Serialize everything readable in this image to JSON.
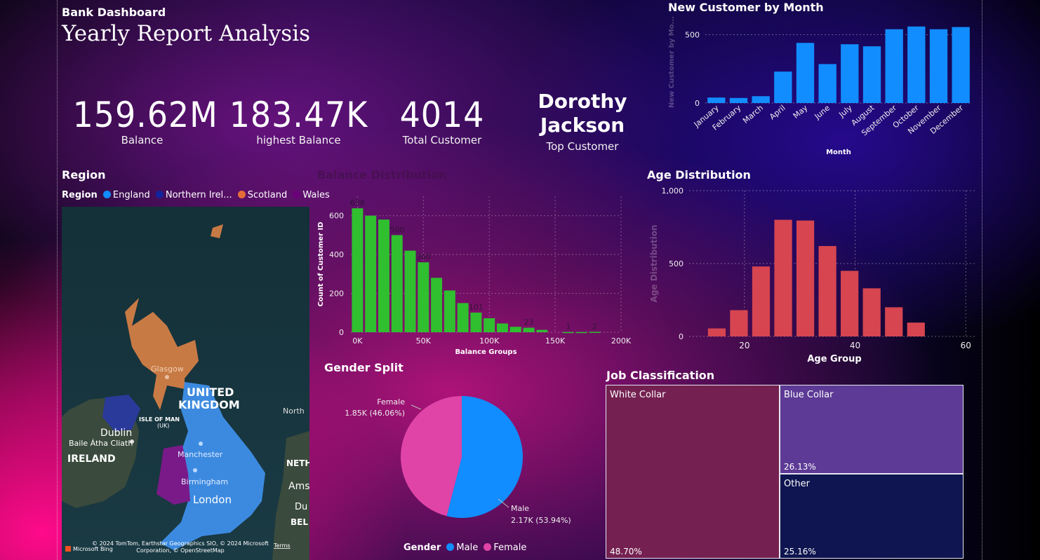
{
  "header": {
    "app_title": "Bank Dashboard",
    "report_title": "Yearly Report Analysis"
  },
  "kpis": {
    "balance": {
      "value": "159.62M",
      "label": "Balance"
    },
    "highest_balance": {
      "value": "183.47K",
      "label": "highest Balance"
    },
    "total_customer": {
      "value": "4014",
      "label": "Total Customer"
    },
    "top_customer": {
      "value_line1": "Dorothy",
      "value_line2": "Jackson",
      "label": "Top Customer"
    }
  },
  "region": {
    "title": "Region",
    "legend_title": "Region",
    "legend": [
      {
        "name": "England",
        "color": "#118dff"
      },
      {
        "name": "Northern Irel...",
        "color": "#12239e"
      },
      {
        "name": "Scotland",
        "color": "#e66c37"
      },
      {
        "name": "Wales",
        "color": "#6b007b"
      }
    ],
    "map_labels": {
      "glasgow": "Glasgow",
      "united": "UNITED",
      "kingdom": "KINGDOM",
      "north": "North",
      "isle_of_man": "ISLE OF MAN",
      "uk": "(UK)",
      "dublin": "Dublin",
      "baile": "Baile Átha Cliath",
      "ireland": "IRELAND",
      "manchester": "Manchester",
      "birmingham": "Birmingham",
      "london": "London",
      "neth": "NETH",
      "ams": "Ams",
      "du": "Du",
      "bel": "BEL",
      "attribution": "© 2024 TomTom, Earthstar Geographics SIO, © 2024 Microsoft Corporation, © OpenStreetMap",
      "bing": "Microsoft Bing",
      "terms": "Terms"
    }
  },
  "chart_data": [
    {
      "id": "new_customer_by_month",
      "type": "bar",
      "title": "New Customer by Month",
      "xlabel": "Month",
      "ylabel": "New Customer by Mo...",
      "categories": [
        "January",
        "February",
        "March",
        "April",
        "May",
        "June",
        "July",
        "August",
        "September",
        "October",
        "November",
        "December"
      ],
      "values": [
        40,
        37,
        50,
        230,
        440,
        285,
        430,
        415,
        540,
        560,
        540,
        556
      ],
      "ylim": [
        0,
        600
      ],
      "yticks": [
        0,
        500
      ],
      "color": "#118dff",
      "grid": true
    },
    {
      "id": "balance_distribution",
      "type": "bar",
      "title": "Balance Distribution",
      "xlabel": "Balance Groups",
      "ylabel": "Count of Customer ID",
      "x": [
        0,
        10000,
        20000,
        30000,
        40000,
        50000,
        60000,
        70000,
        80000,
        90000,
        100000,
        110000,
        120000,
        130000,
        140000,
        150000,
        160000,
        170000,
        180000
      ],
      "values": [
        638,
        600,
        580,
        500,
        420,
        360,
        280,
        215,
        150,
        101,
        72,
        45,
        28,
        23,
        12,
        0,
        1,
        1,
        2
      ],
      "data_labels": {
        "0": "638",
        "3": "500",
        "5": "360",
        "9": "101",
        "13": "23",
        "16": "1",
        "18": "2"
      },
      "ylim": [
        0,
        700
      ],
      "yticks": [
        0,
        200,
        400,
        600
      ],
      "xticks": [
        {
          "v": 0,
          "label": "0K"
        },
        {
          "v": 50000,
          "label": "50K"
        },
        {
          "v": 100000,
          "label": "100K"
        },
        {
          "v": 150000,
          "label": "150K"
        },
        {
          "v": 200000,
          "label": "200K"
        }
      ],
      "xlim": [
        -5000,
        200000
      ],
      "color": "#2fbf2f",
      "grid": true
    },
    {
      "id": "age_distribution",
      "type": "bar",
      "title": "Age Distribution",
      "xlabel": "Age Group",
      "ylabel": "Age Distribution",
      "x": [
        15,
        19,
        23,
        27,
        31,
        35,
        39,
        43,
        47,
        51,
        55,
        59
      ],
      "values": [
        55,
        180,
        480,
        800,
        795,
        620,
        450,
        330,
        200,
        95,
        0,
        0
      ],
      "ylim": [
        0,
        1000
      ],
      "yticks": [
        {
          "v": 0,
          "label": "0"
        },
        {
          "v": 500,
          "label": "500"
        },
        {
          "v": 1000,
          "label": "1,000"
        }
      ],
      "xticks": [
        20,
        40,
        60
      ],
      "xlim": [
        10,
        62
      ],
      "color": "#d64550",
      "grid": true
    },
    {
      "id": "gender_split",
      "type": "pie",
      "title": "Gender Split",
      "legend_title": "Gender",
      "slices": [
        {
          "name": "Male",
          "value": 2170,
          "pct": 53.94,
          "label": "2.17K (53.94%)",
          "color": "#118dff"
        },
        {
          "name": "Female",
          "value": 1850,
          "pct": 46.06,
          "label": "1.85K (46.06%)",
          "color": "#e044a7"
        }
      ]
    },
    {
      "id": "job_classification",
      "type": "treemap",
      "title": "Job Classification",
      "items": [
        {
          "name": "White Collar",
          "pct": 48.7,
          "label": "48.70%",
          "color": "#742151"
        },
        {
          "name": "Blue Collar",
          "pct": 26.13,
          "label": "26.13%",
          "color": "#5c3a95"
        },
        {
          "name": "Other",
          "pct": 25.16,
          "label": "25.16%",
          "color": "#0e1550"
        }
      ]
    }
  ]
}
